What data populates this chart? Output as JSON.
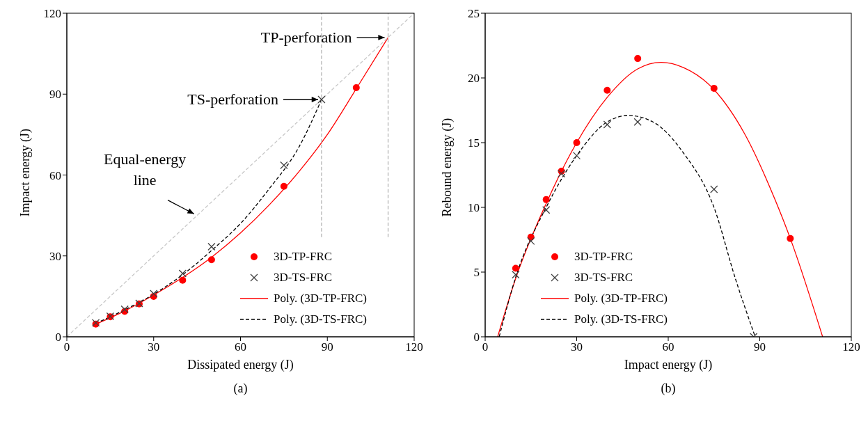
{
  "chart_data": [
    {
      "type": "scatter",
      "xlabel": "Dissipated energy (J)",
      "ylabel": "Impact energy (J)",
      "xlim": [
        0,
        120
      ],
      "ylim": [
        0,
        120
      ],
      "xticks": [
        0,
        30,
        60,
        90,
        120
      ],
      "yticks": [
        0,
        30,
        60,
        90,
        120
      ],
      "legend": "bottom right",
      "series": [
        {
          "name": "3D-TP-FRC",
          "type": "scatter",
          "marker": "circle",
          "color": "#ff0000",
          "x": [
            10,
            15,
            20,
            25,
            30,
            40,
            50,
            75,
            100
          ],
          "values": [
            4.7,
            7.4,
            9.4,
            12.2,
            15,
            21,
            28.6,
            55.8,
            92.4
          ]
        },
        {
          "name": "3D-TS-FRC",
          "type": "scatter",
          "marker": "cross",
          "color": "#404040",
          "x": [
            10,
            15,
            20,
            25,
            30,
            40,
            50,
            75,
            88
          ],
          "values": [
            5.2,
            7.6,
            10.2,
            12.4,
            16,
            23.5,
            33.4,
            63.6,
            88
          ]
        },
        {
          "name": "Poly. (3D-TP-FRC)",
          "type": "line",
          "line_style": "solid",
          "color": "#ff0000",
          "x": [
            10,
            20,
            30,
            40,
            50,
            60,
            70,
            80,
            90,
            100,
            111
          ],
          "values": [
            4.7,
            9.6,
            15.5,
            22,
            29.5,
            38.5,
            49,
            61,
            75,
            92,
            111
          ]
        },
        {
          "name": "Poly. (3D-TS-FRC)",
          "type": "line",
          "line_style": "dashed",
          "color": "#000000",
          "x": [
            10,
            20,
            30,
            40,
            50,
            60,
            70,
            80,
            88
          ],
          "values": [
            5,
            10,
            15.8,
            23,
            32,
            42,
            55,
            70,
            88
          ]
        },
        {
          "type": "line",
          "line_style": "dashed",
          "color": "#c8c8c8",
          "x": [
            0,
            120
          ],
          "values": [
            0,
            120
          ]
        },
        {
          "type": "line",
          "line_style": "dashed",
          "color": "#b4b4b4",
          "x": [
            88,
            88
          ],
          "values": [
            37,
            120
          ]
        },
        {
          "type": "line",
          "line_style": "dashed",
          "color": "#b4b4b4",
          "x": [
            111,
            111
          ],
          "values": [
            37,
            120
          ]
        }
      ],
      "annotations": [
        {
          "text": "TP-perforation",
          "x": 111,
          "y": 111
        },
        {
          "text": "TS-perforation",
          "x": 88,
          "y": 88
        },
        {
          "text": "Equal-energy line",
          "x": 45,
          "y": 45
        },
        "(a)"
      ]
    },
    {
      "type": "scatter",
      "xlabel": "Impact energy (J)",
      "ylabel": "Rebound energy (J)",
      "xlim": [
        0,
        120
      ],
      "ylim": [
        0,
        25
      ],
      "xticks": [
        0,
        30,
        60,
        90,
        120
      ],
      "yticks": [
        0,
        5,
        10,
        15,
        20,
        25
      ],
      "legend": "bottom left",
      "series": [
        {
          "name": "3D-TP-FRC",
          "type": "scatter",
          "marker": "circle",
          "color": "#ff0000",
          "x": [
            10,
            15,
            20,
            25,
            30,
            40,
            50,
            75,
            100
          ],
          "values": [
            5.3,
            7.7,
            10.6,
            12.8,
            15,
            19.05,
            21.5,
            19.2,
            7.6
          ]
        },
        {
          "name": "3D-TS-FRC",
          "type": "scatter",
          "marker": "cross",
          "color": "#404040",
          "x": [
            10,
            15,
            20,
            25,
            30,
            40,
            50,
            75,
            88
          ],
          "values": [
            4.8,
            7.4,
            9.8,
            12.6,
            14,
            16.4,
            16.6,
            11.4,
            0
          ]
        },
        {
          "name": "Poly. (3D-TP-FRC)",
          "type": "line",
          "line_style": "solid",
          "color": "#ff0000",
          "x": [
            4.1,
            10,
            20,
            30,
            40,
            50,
            57.7,
            65,
            75,
            85,
            95,
            100,
            110.6
          ],
          "values": [
            0,
            4.5,
            10.3,
            15,
            18.5,
            20.7,
            21.2,
            20.8,
            19.1,
            15.7,
            10.6,
            7.6,
            0
          ]
        },
        {
          "name": "Poly. (3D-TS-FRC)",
          "type": "line",
          "line_style": "dashed",
          "color": "#000000",
          "x": [
            4.6,
            10,
            20,
            30,
            40,
            47,
            55,
            65,
            75,
            82,
            88.5
          ],
          "values": [
            0,
            4.6,
            10,
            14,
            16.6,
            17.1,
            16.6,
            14.2,
            10,
            4.5,
            0
          ]
        }
      ],
      "annotations": [
        "(b)"
      ]
    }
  ]
}
